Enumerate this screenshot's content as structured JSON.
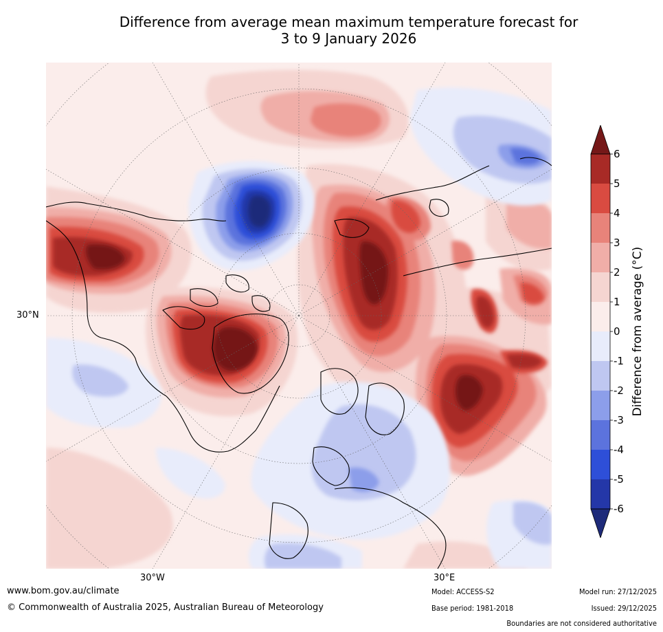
{
  "title_line1": "Difference from average mean maximum temperature forecast for",
  "title_line2": "3 to 9 January 2026",
  "map": {
    "lat_label": "30°N",
    "lon_label_west": "30°W",
    "lon_label_east": "30°E"
  },
  "colorbar": {
    "label": "Difference from average (°C)",
    "ticks": [
      "6",
      "5",
      "4",
      "3",
      "2",
      "1",
      "0",
      "-1",
      "-2",
      "-3",
      "-4",
      "-5",
      "-6"
    ],
    "colors": {
      "c6_over": "#751818",
      "c5_6": "#a82a26",
      "c4_5": "#d94b41",
      "c3_4": "#e8837a",
      "c2_3": "#f0aea8",
      "c1_2": "#f5d5d1",
      "c0_1": "#fbedeb",
      "cm1_0": "#e8ecfb",
      "cm2_m1": "#bfc7f1",
      "cm3_m2": "#8c9eea",
      "cm4_m3": "#5c73dd",
      "cm5_m4": "#2e4fd8",
      "cm6_m5": "#2437a8",
      "cm6_under": "#1e2b7a"
    }
  },
  "footer": {
    "url": "www.bom.gov.au/climate",
    "copyright": "© Commonwealth of Australia 2025, Australian Bureau of Meteorology",
    "model": "Model: ACCESS-S2",
    "base_period": "Base period: 1981-2018",
    "model_run": "Model run: 27/12/2025",
    "issued": "Issued: 29/12/2025",
    "disclaimer": "Boundaries are not considered authoritative"
  }
}
